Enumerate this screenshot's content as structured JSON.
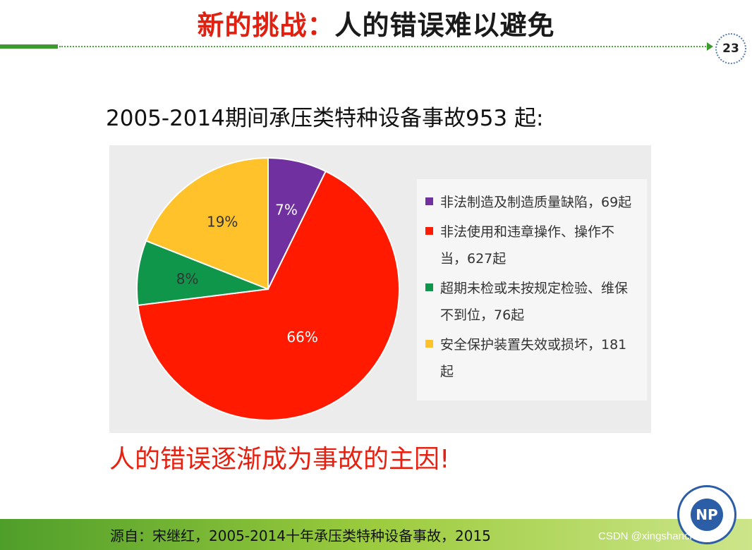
{
  "slide": {
    "title_red": "新的挑战：",
    "title_dark": "人的错误难以避免",
    "page_number": "23",
    "subtitle": "2005-2014期间承压类特种设备事故953 起:",
    "callout": "人的错误逐渐成为事故的主因!",
    "source": "源自：宋继红，2005-2014十年承压类特种设备事故，2015",
    "watermark": "CSDN @xingshanchang"
  },
  "chart_data": {
    "type": "pie",
    "total": 953,
    "start_angle_deg": 0,
    "direction": "clockwise",
    "slices": [
      {
        "label": "非法制造及制造质量缺陷，69起",
        "value": 69,
        "percent_label": "7%",
        "color": "#7030a0",
        "label_color": "#ffffff"
      },
      {
        "label": "非法使用和违章操作、操作不当，627起",
        "value": 627,
        "percent_label": "66%",
        "color": "#ff1a00",
        "label_color": "#ffffff"
      },
      {
        "label": "超期未检或未按规定检验、维保不到位，76起",
        "value": 76,
        "percent_label": "8%",
        "color": "#10964b",
        "label_color": "#333333"
      },
      {
        "label": "安全保护装置失效或损坏，181起",
        "value": 181,
        "percent_label": "19%",
        "color": "#ffc22a",
        "label_color": "#333333"
      }
    ],
    "legend_position": "right"
  }
}
